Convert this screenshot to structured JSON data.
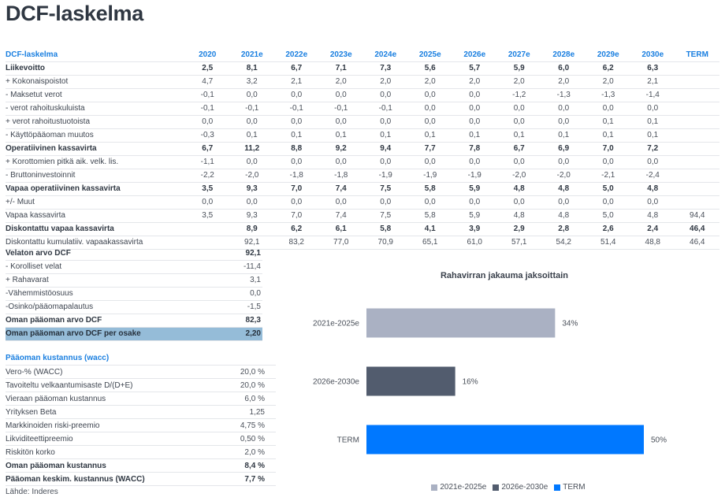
{
  "page": {
    "title": "DCF-laskelma"
  },
  "dcf_table": {
    "header_label": "DCF-laskelma",
    "columns": [
      "2020",
      "2021e",
      "2022e",
      "2023e",
      "2024e",
      "2025e",
      "2026e",
      "2027e",
      "2028e",
      "2029e",
      "2030e",
      "TERM"
    ],
    "rows": [
      {
        "label": "Liikevoitto",
        "bold": true,
        "values": [
          "2,5",
          "8,1",
          "6,7",
          "7,1",
          "7,3",
          "5,6",
          "5,7",
          "5,9",
          "6,0",
          "6,2",
          "6,3",
          ""
        ]
      },
      {
        "label": "+ Kokonaispoistot",
        "bold": false,
        "values": [
          "4,7",
          "3,2",
          "2,1",
          "2,0",
          "2,0",
          "2,0",
          "2,0",
          "2,0",
          "2,0",
          "2,0",
          "2,1",
          ""
        ]
      },
      {
        "label": "- Maksetut verot",
        "bold": false,
        "values": [
          "-0,1",
          "0,0",
          "0,0",
          "0,0",
          "0,0",
          "0,0",
          "0,0",
          "-1,2",
          "-1,3",
          "-1,3",
          "-1,4",
          ""
        ]
      },
      {
        "label": "- verot rahoituskuluista",
        "bold": false,
        "values": [
          "-0,1",
          "-0,1",
          "-0,1",
          "-0,1",
          "-0,1",
          "0,0",
          "0,0",
          "0,0",
          "0,0",
          "0,0",
          "0,0",
          ""
        ]
      },
      {
        "label": "+ verot rahoitustuotoista",
        "bold": false,
        "values": [
          "0,0",
          "0,0",
          "0,0",
          "0,0",
          "0,0",
          "0,0",
          "0,0",
          "0,0",
          "0,0",
          "0,1",
          "0,1",
          ""
        ]
      },
      {
        "label": "- Käyttöpääoman muutos",
        "bold": false,
        "values": [
          "-0,3",
          "0,1",
          "0,1",
          "0,1",
          "0,1",
          "0,1",
          "0,1",
          "0,1",
          "0,1",
          "0,1",
          "0,1",
          ""
        ]
      },
      {
        "label": "Operatiivinen kassavirta",
        "bold": true,
        "values": [
          "6,7",
          "11,2",
          "8,8",
          "9,2",
          "9,4",
          "7,7",
          "7,8",
          "6,7",
          "6,9",
          "7,0",
          "7,2",
          ""
        ]
      },
      {
        "label": "+ Korottomien pitkä aik. velk. lis.",
        "bold": false,
        "values": [
          "-1,1",
          "0,0",
          "0,0",
          "0,0",
          "0,0",
          "0,0",
          "0,0",
          "0,0",
          "0,0",
          "0,0",
          "0,0",
          ""
        ]
      },
      {
        "label": "- Bruttoninvestoinnit",
        "bold": false,
        "values": [
          "-2,2",
          "-2,0",
          "-1,8",
          "-1,8",
          "-1,9",
          "-1,9",
          "-1,9",
          "-2,0",
          "-2,0",
          "-2,1",
          "-2,4",
          ""
        ]
      },
      {
        "label": "Vapaa operatiivinen kassavirta",
        "bold": true,
        "values": [
          "3,5",
          "9,3",
          "7,0",
          "7,4",
          "7,5",
          "5,8",
          "5,9",
          "4,8",
          "4,8",
          "5,0",
          "4,8",
          ""
        ]
      },
      {
        "label": "+/- Muut",
        "bold": false,
        "values": [
          "0,0",
          "0,0",
          "0,0",
          "0,0",
          "0,0",
          "0,0",
          "0,0",
          "0,0",
          "0,0",
          "0,0",
          "0,0",
          ""
        ]
      },
      {
        "label": "Vapaa kassavirta",
        "bold": false,
        "values": [
          "3,5",
          "9,3",
          "7,0",
          "7,4",
          "7,5",
          "5,8",
          "5,9",
          "4,8",
          "4,8",
          "5,0",
          "4,8",
          "94,4"
        ]
      },
      {
        "label": "Diskontattu vapaa kassavirta",
        "bold": true,
        "values": [
          "",
          "8,9",
          "6,2",
          "6,1",
          "5,8",
          "4,1",
          "3,9",
          "2,9",
          "2,8",
          "2,6",
          "2,4",
          "46,4"
        ]
      },
      {
        "label": "Diskontattu kumulatiiv. vapaakassavirta",
        "bold": false,
        "values": [
          "",
          "92,1",
          "83,2",
          "77,0",
          "70,9",
          "65,1",
          "61,0",
          "57,1",
          "54,2",
          "51,4",
          "48,8",
          "46,4"
        ]
      }
    ]
  },
  "valuation": {
    "rows": [
      {
        "label": "Velaton arvo DCF",
        "value": "92,1",
        "style": "bold"
      },
      {
        "label": "- Korolliset velat",
        "value": "-11,4",
        "style": "normal"
      },
      {
        "label": "+ Rahavarat",
        "value": "3,1",
        "style": "normal"
      },
      {
        "label": "-Vähemmistöosuus",
        "value": "0,0",
        "style": "normal"
      },
      {
        "label": "-Osinko/pääomapalautus",
        "value": "-1,5",
        "style": "normal"
      },
      {
        "label": "Oman pääoman arvo DCF",
        "value": "82,3",
        "style": "bold"
      },
      {
        "label": "Oman pääoman arvo DCF per osake",
        "value": "2,20",
        "style": "highlight"
      }
    ]
  },
  "wacc": {
    "title": "Pääoman kustannus (wacc)",
    "rows": [
      {
        "label": "Vero-% (WACC)",
        "value": "20,0 %",
        "bold": false
      },
      {
        "label": "Tavoiteltu velkaantumisaste D/(D+E)",
        "value": "20,0 %",
        "bold": false
      },
      {
        "label": "Vieraan pääoman kustannus",
        "value": "6,0 %",
        "bold": false
      },
      {
        "label": "Yrityksen Beta",
        "value": "1,25",
        "bold": false
      },
      {
        "label": "Markkinoiden riski-preemio",
        "value": "4,75 %",
        "bold": false
      },
      {
        "label": "Likviditeettipreemio",
        "value": "0,50 %",
        "bold": false
      },
      {
        "label": "Riskitön korko",
        "value": "2,0 %",
        "bold": false
      },
      {
        "label": "Oman pääoman kustannus",
        "value": "8,4 %",
        "bold": true
      },
      {
        "label": "Pääoman keskim. kustannus (WACC)",
        "value": "7,7 %",
        "bold": true
      }
    ],
    "source": "Lähde: Inderes"
  },
  "colors": {
    "accent_blue": "#1a7fe0",
    "highlight_row": "#95bcd8",
    "series_2021_2025": "#aab1c3",
    "series_2026_2030": "#525c6e",
    "series_term": "#0078ff"
  },
  "chart_data": {
    "type": "bar",
    "orientation": "horizontal",
    "title": "Rahavirran jakauma jaksoittain",
    "categories": [
      "2021e-2025e",
      "2026e-2030e",
      "TERM"
    ],
    "values": [
      34,
      16,
      50
    ],
    "data_labels": [
      "34%",
      "16%",
      "50%"
    ],
    "unit": "%",
    "xlim": [
      0,
      50
    ],
    "grid": false,
    "xlabel": "",
    "ylabel": "",
    "legend": {
      "placement": "bottom",
      "entries": [
        "2021e-2025e",
        "2026e-2030e",
        "TERM"
      ]
    },
    "series_colors": [
      "#aab1c3",
      "#525c6e",
      "#0078ff"
    ]
  }
}
